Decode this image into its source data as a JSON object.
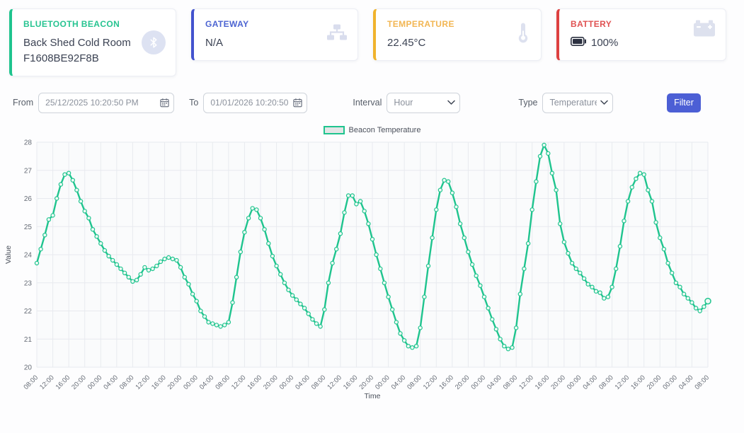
{
  "cards": {
    "beacon": {
      "title": "BLUETOOTH BEACON",
      "name": "Back Shed Cold Room",
      "id": "F1608BE92F8B",
      "accent": "#1fc48e"
    },
    "gateway": {
      "title": "GATEWAY",
      "value": "N/A",
      "accent": "#4353ce"
    },
    "temperature": {
      "title": "TEMPERATURE",
      "value": "22.45°C",
      "accent": "#f0b32d"
    },
    "battery": {
      "title": "BATTERY",
      "value": "100%",
      "accent": "#dd4040"
    }
  },
  "filters": {
    "from_label": "From",
    "from_value": "25/12/2025 10:20:50 PM",
    "to_label": "To",
    "to_value": "01/01/2026 10:20:50 PM",
    "interval_label": "Interval",
    "interval_value": "Hour",
    "type_label": "Type",
    "type_value": "Temperature",
    "button_label": "Filter"
  },
  "chart_data": {
    "type": "line",
    "series_name": "Beacon Temperature",
    "line_color": "#1fc48e",
    "marker_fill": "#eefaf5",
    "grid_color": "#e8eaef",
    "tick_color": "#666c76",
    "xlabel": "Time",
    "ylabel": "Value",
    "ylim": [
      20,
      28
    ],
    "y_ticks": [
      20,
      21,
      22,
      23,
      24,
      25,
      26,
      27,
      28
    ],
    "x_tick_interval_hours": 4,
    "x_tick_labels": [
      "08:00",
      "12:00",
      "16:00",
      "20:00",
      "00:00",
      "04:00",
      "08:00",
      "12:00",
      "16:00",
      "20:00",
      "00:00",
      "04:00",
      "08:00",
      "12:00",
      "16:00",
      "20:00",
      "00:00",
      "04:00",
      "08:00",
      "12:00",
      "16:00",
      "20:00",
      "00:00",
      "04:00",
      "08:00",
      "12:00",
      "16:00",
      "20:00",
      "00:00",
      "04:00",
      "08:00",
      "12:00",
      "16:00",
      "20:00",
      "00:00",
      "04:00",
      "08:00",
      "12:00",
      "16:00",
      "20:00",
      "00:00",
      "04:00",
      "08:00"
    ],
    "values": [
      23.7,
      24.2,
      24.7,
      25.25,
      25.4,
      26.0,
      26.5,
      26.85,
      26.9,
      26.65,
      26.3,
      25.9,
      25.55,
      25.3,
      24.9,
      24.65,
      24.4,
      24.15,
      23.95,
      23.8,
      23.65,
      23.5,
      23.35,
      23.2,
      23.05,
      23.1,
      23.3,
      23.55,
      23.45,
      23.5,
      23.6,
      23.75,
      23.85,
      23.9,
      23.85,
      23.8,
      23.55,
      23.2,
      22.95,
      22.6,
      22.35,
      22.0,
      21.8,
      21.6,
      21.55,
      21.5,
      21.45,
      21.5,
      21.6,
      22.3,
      23.2,
      24.1,
      24.8,
      25.3,
      25.65,
      25.6,
      25.3,
      24.9,
      24.4,
      23.95,
      23.6,
      23.3,
      23.0,
      22.75,
      22.55,
      22.4,
      22.25,
      22.1,
      21.9,
      21.7,
      21.55,
      21.45,
      22.05,
      23.0,
      23.7,
      24.2,
      24.75,
      25.5,
      26.1,
      26.1,
      25.8,
      25.9,
      25.55,
      25.1,
      24.55,
      24.0,
      23.5,
      23.0,
      22.5,
      22.05,
      21.6,
      21.2,
      20.95,
      20.75,
      20.7,
      20.75,
      21.4,
      22.5,
      23.6,
      24.6,
      25.6,
      26.3,
      26.65,
      26.6,
      26.2,
      25.7,
      25.1,
      24.6,
      24.1,
      23.65,
      23.25,
      22.9,
      22.5,
      22.1,
      21.7,
      21.35,
      21.0,
      20.75,
      20.65,
      20.7,
      21.4,
      22.6,
      23.5,
      24.4,
      25.6,
      26.6,
      27.5,
      27.9,
      27.6,
      26.9,
      26.3,
      25.1,
      24.45,
      24.05,
      23.7,
      23.5,
      23.35,
      23.15,
      22.95,
      22.85,
      22.7,
      22.65,
      22.45,
      22.5,
      22.85,
      23.5,
      24.3,
      25.2,
      25.9,
      26.4,
      26.7,
      26.9,
      26.85,
      26.3,
      25.9,
      25.15,
      24.6,
      24.2,
      23.7,
      23.35,
      23.0,
      22.85,
      22.6,
      22.45,
      22.3,
      22.1,
      22.0,
      22.15,
      22.35
    ]
  }
}
